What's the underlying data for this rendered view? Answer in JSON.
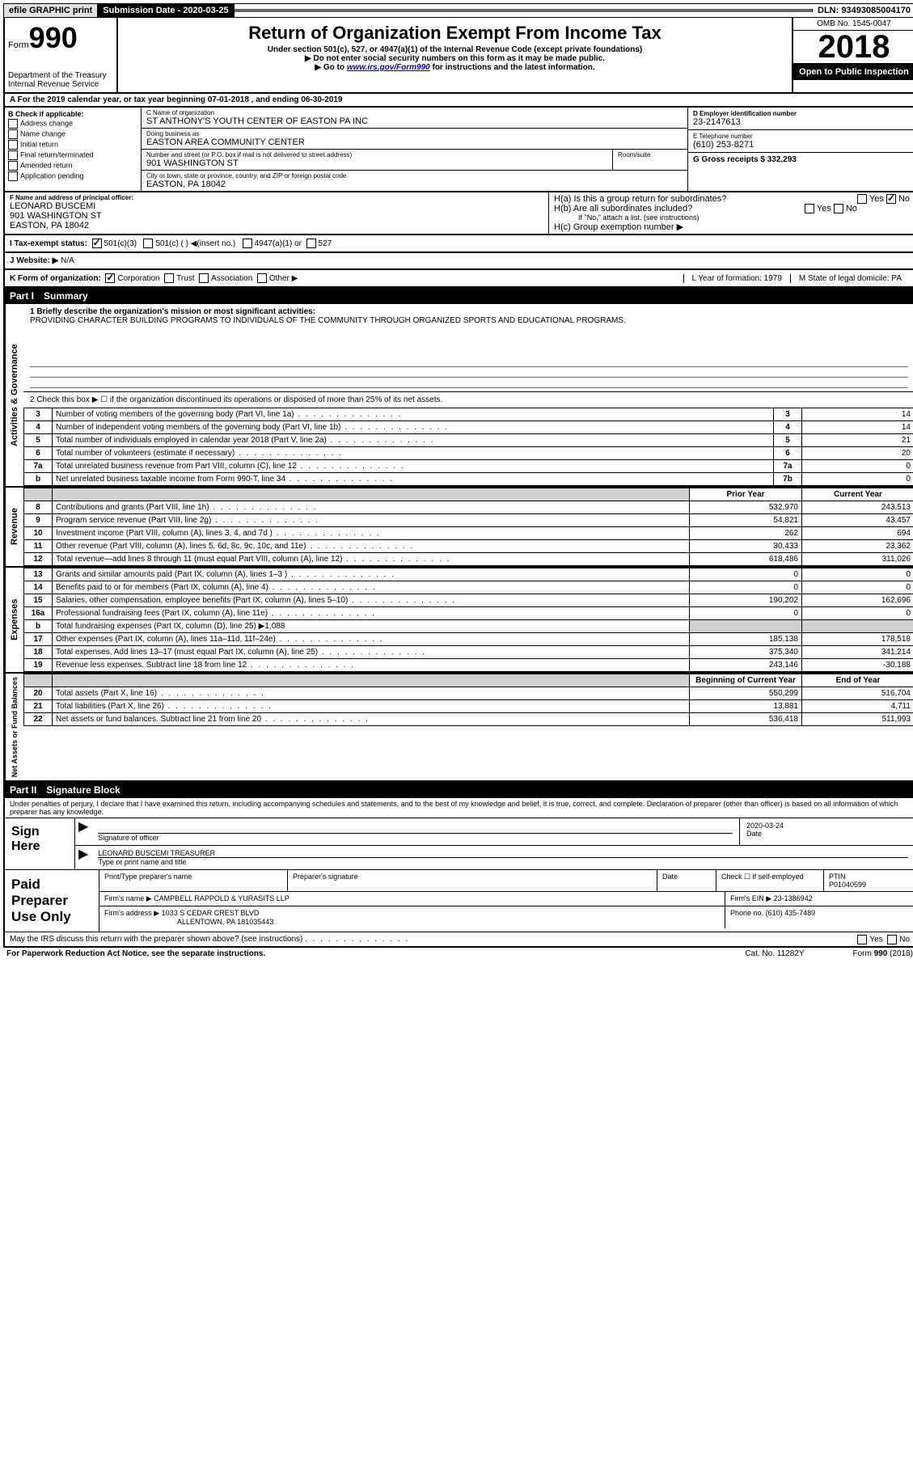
{
  "topbar": {
    "efile": "efile GRAPHIC print",
    "sub_label": "Submission Date - 2020-03-25",
    "dln": "DLN: 93493085004170"
  },
  "header": {
    "form_prefix": "Form",
    "form_number": "990",
    "dept": "Department of the Treasury",
    "irs": "Internal Revenue Service",
    "title": "Return of Organization Exempt From Income Tax",
    "sub1": "Under section 501(c), 527, or 4947(a)(1) of the Internal Revenue Code (except private foundations)",
    "sub2": "▶ Do not enter social security numbers on this form as it may be made public.",
    "sub3_pre": "▶ Go to ",
    "sub3_link": "www.irs.gov/Form990",
    "sub3_post": " for instructions and the latest information.",
    "omb": "OMB No. 1545-0047",
    "year": "2018",
    "open": "Open to Public Inspection"
  },
  "period": "A For the 2019 calendar year, or tax year beginning 07-01-2018    , and ending 06-30-2019",
  "boxB": {
    "label": "B Check if applicable:",
    "items": [
      "Address change",
      "Name change",
      "Initial return",
      "Final return/terminated",
      "Amended return",
      "Application pending"
    ]
  },
  "boxC": {
    "name_label": "C Name of organization",
    "name": "ST ANTHONY'S YOUTH CENTER OF EASTON PA INC",
    "dba_label": "Doing business as",
    "dba": "EASTON AREA COMMUNITY CENTER",
    "addr_label": "Number and street (or P.O. box if mail is not delivered to street address)",
    "addr": "901 WASHINGTON ST",
    "suite_label": "Room/suite",
    "city_label": "City or town, state or province, country, and ZIP or foreign postal code",
    "city": "EASTON, PA  18042"
  },
  "boxD": {
    "label": "D Employer identification number",
    "val": "23-2147613"
  },
  "boxE": {
    "label": "E Telephone number",
    "val": "(610) 253-8271"
  },
  "boxG": {
    "label": "G Gross receipts $ 332,293"
  },
  "boxF": {
    "label": "F  Name and address of principal officer:",
    "name": "LEONARD BUSCEMI",
    "addr": "901 WASHINGTON ST",
    "city": "EASTON, PA  18042"
  },
  "boxH": {
    "a": "H(a)  Is this a group return for subordinates?",
    "b": "H(b)  Are all subordinates included?",
    "b_note": "If \"No,\" attach a list. (see instructions)",
    "c": "H(c)  Group exemption number ▶",
    "yes": "Yes",
    "no": "No"
  },
  "boxI": {
    "label": "I   Tax-exempt status:",
    "opts": [
      "501(c)(3)",
      "501(c) (  ) ◀(insert no.)",
      "4947(a)(1) or",
      "527"
    ]
  },
  "boxJ": {
    "label": "J   Website: ▶",
    "val": "N/A"
  },
  "boxK": {
    "label": "K Form of organization:",
    "opts": [
      "Corporation",
      "Trust",
      "Association",
      "Other ▶"
    ]
  },
  "boxL": {
    "label": "L Year of formation: 1979"
  },
  "boxM": {
    "label": "M State of legal domicile: PA"
  },
  "part1": {
    "num": "Part I",
    "title": "Summary"
  },
  "mission": {
    "label": "1  Briefly describe the organization's mission or most significant activities:",
    "text": "PROVIDING CHARACTER BUILDING PROGRAMS TO INDIVIDUALS OF THE COMMUNITY THROUGH ORGANIZED SPORTS AND EDUCATIONAL PROGRAMS."
  },
  "line2": "2   Check this box ▶ ☐  if the organization discontinued its operations or disposed of more than 25% of its net assets.",
  "gov_rows": [
    {
      "n": "3",
      "d": "Number of voting members of the governing body (Part VI, line 1a)",
      "b": "3",
      "v": "14"
    },
    {
      "n": "4",
      "d": "Number of independent voting members of the governing body (Part VI, line 1b)",
      "b": "4",
      "v": "14"
    },
    {
      "n": "5",
      "d": "Total number of individuals employed in calendar year 2018 (Part V, line 2a)",
      "b": "5",
      "v": "21"
    },
    {
      "n": "6",
      "d": "Total number of volunteers (estimate if necessary)",
      "b": "6",
      "v": "20"
    },
    {
      "n": "7a",
      "d": "Total unrelated business revenue from Part VIII, column (C), line 12",
      "b": "7a",
      "v": "0"
    },
    {
      "n": "b",
      "d": "Net unrelated business taxable income from Form 990-T, line 34",
      "b": "7b",
      "v": "0"
    }
  ],
  "rev_hdr": {
    "py": "Prior Year",
    "cy": "Current Year"
  },
  "rev_rows": [
    {
      "n": "8",
      "d": "Contributions and grants (Part VIII, line 1h)",
      "py": "532,970",
      "cy": "243,513"
    },
    {
      "n": "9",
      "d": "Program service revenue (Part VIII, line 2g)",
      "py": "54,821",
      "cy": "43,457"
    },
    {
      "n": "10",
      "d": "Investment income (Part VIII, column (A), lines 3, 4, and 7d )",
      "py": "262",
      "cy": "694"
    },
    {
      "n": "11",
      "d": "Other revenue (Part VIII, column (A), lines 5, 6d, 8c, 9c, 10c, and 11e)",
      "py": "30,433",
      "cy": "23,362"
    },
    {
      "n": "12",
      "d": "Total revenue—add lines 8 through 11 (must equal Part VIII, column (A), line 12)",
      "py": "618,486",
      "cy": "311,026"
    }
  ],
  "exp_rows": [
    {
      "n": "13",
      "d": "Grants and similar amounts paid (Part IX, column (A), lines 1–3 )",
      "py": "0",
      "cy": "0"
    },
    {
      "n": "14",
      "d": "Benefits paid to or for members (Part IX, column (A), line 4)",
      "py": "0",
      "cy": "0"
    },
    {
      "n": "15",
      "d": "Salaries, other compensation, employee benefits (Part IX, column (A), lines 5–10)",
      "py": "190,202",
      "cy": "162,696"
    },
    {
      "n": "16a",
      "d": "Professional fundraising fees (Part IX, column (A), line 11e)",
      "py": "0",
      "cy": "0"
    }
  ],
  "exp_b": {
    "n": "b",
    "d": "Total fundraising expenses (Part IX, column (D), line 25) ▶1,088"
  },
  "exp_rows2": [
    {
      "n": "17",
      "d": "Other expenses (Part IX, column (A), lines 11a–11d, 11f–24e)",
      "py": "185,138",
      "cy": "178,518"
    },
    {
      "n": "18",
      "d": "Total expenses. Add lines 13–17 (must equal Part IX, column (A), line 25)",
      "py": "375,340",
      "cy": "341,214"
    },
    {
      "n": "19",
      "d": "Revenue less expenses. Subtract line 18 from line 12",
      "py": "243,146",
      "cy": "-30,188"
    }
  ],
  "net_hdr": {
    "py": "Beginning of Current Year",
    "cy": "End of Year"
  },
  "net_rows": [
    {
      "n": "20",
      "d": "Total assets (Part X, line 16)",
      "py": "550,299",
      "cy": "516,704"
    },
    {
      "n": "21",
      "d": "Total liabilities (Part X, line 26)",
      "py": "13,881",
      "cy": "4,711"
    },
    {
      "n": "22",
      "d": "Net assets or fund balances. Subtract line 21 from line 20",
      "py": "536,418",
      "cy": "511,993"
    }
  ],
  "part2": {
    "num": "Part II",
    "title": "Signature Block"
  },
  "penalty": "Under penalties of perjury, I declare that I have examined this return, including accompanying schedules and statements, and to the best of my knowledge and belief, it is true, correct, and complete. Declaration of preparer (other than officer) is based on all information of which preparer has any knowledge.",
  "sign": {
    "here": "Sign Here",
    "sig_label": "Signature of officer",
    "date_label": "Date",
    "date": "2020-03-24",
    "name": "LEONARD BUSCEMI TREASURER",
    "name_label": "Type or print name and title"
  },
  "paid": {
    "title": "Paid Preparer Use Only",
    "h1": "Print/Type preparer's name",
    "h2": "Preparer's signature",
    "h3": "Date",
    "h4_pre": "Check ☐ if self-employed",
    "h5": "PTIN",
    "ptin": "P01040599",
    "firm_label": "Firm's name    ▶",
    "firm": "CAMPBELL RAPPOLD & YURASITS LLP",
    "ein_label": "Firm's EIN ▶",
    "ein": "23-1386942",
    "addr_label": "Firm's address ▶",
    "addr1": "1033 S CEDAR CREST BLVD",
    "addr2": "ALLENTOWN, PA  181035443",
    "phone_label": "Phone no.",
    "phone": "(610) 435-7489"
  },
  "discuss": "May the IRS discuss this return with the preparer shown above? (see instructions)",
  "footer": {
    "left": "For Paperwork Reduction Act Notice, see the separate instructions.",
    "mid": "Cat. No. 11282Y",
    "right": "Form 990 (2018)"
  },
  "side_labels": {
    "gov": "Activities & Governance",
    "rev": "Revenue",
    "exp": "Expenses",
    "net": "Net Assets or Fund Balances"
  }
}
